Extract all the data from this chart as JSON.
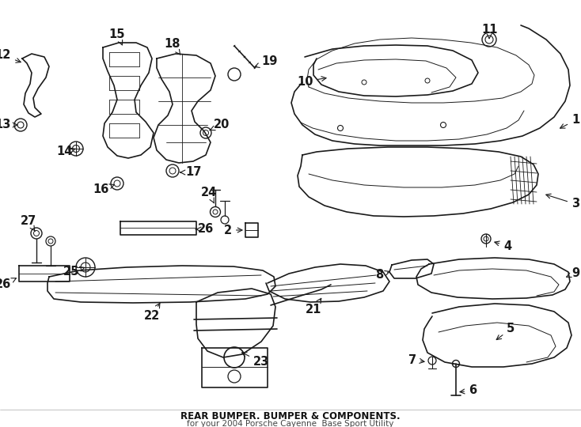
{
  "title": "REAR BUMPER. BUMPER & COMPONENTS.",
  "subtitle": "for your 2004 Porsche Cayenne  Base Sport Utility",
  "bg_color": "#ffffff",
  "line_color": "#1a1a1a",
  "figsize": [
    7.34,
    5.4
  ],
  "dpi": 100
}
